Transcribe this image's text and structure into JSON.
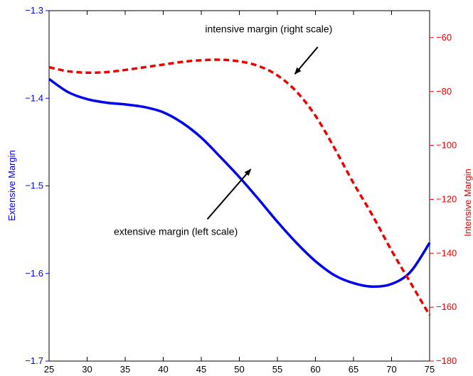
{
  "chart_data": {
    "type": "line",
    "x": [
      25,
      27.5,
      30,
      32.5,
      35,
      37.5,
      40,
      42.5,
      45,
      47.5,
      50,
      52.5,
      55,
      57.5,
      60,
      62.5,
      65,
      67.5,
      70,
      72.5,
      75
    ],
    "xticks": [
      25,
      30,
      35,
      40,
      45,
      50,
      55,
      60,
      65,
      70,
      75
    ],
    "xlim": [
      25,
      75
    ],
    "y_left": {
      "label": "Extensive Margin",
      "lim": [
        -1.7,
        -1.3
      ],
      "ticks": [
        -1.7,
        -1.6,
        -1.5,
        -1.4,
        -1.3
      ],
      "tick_labels": [
        "−1.7",
        "−1.6",
        "−1.5",
        "−1.4",
        "−1.3"
      ],
      "color": "#0000ee"
    },
    "y_right": {
      "label": "Intensive Margin",
      "lim": [
        -180,
        -50
      ],
      "ticks": [
        -180,
        -160,
        -140,
        -120,
        -100,
        -80,
        -60
      ],
      "tick_labels": [
        "−180",
        "−160",
        "−140",
        "−120",
        "−100",
        "−80",
        "−60"
      ],
      "color": "#ee0000"
    },
    "series": [
      {
        "axis": "left",
        "style": "solid",
        "color": "#0000ee",
        "values": [
          -1.378,
          -1.393,
          -1.401,
          -1.405,
          -1.407,
          -1.41,
          -1.416,
          -1.428,
          -1.445,
          -1.467,
          -1.49,
          -1.515,
          -1.541,
          -1.565,
          -1.586,
          -1.602,
          -1.611,
          -1.615,
          -1.612,
          -1.598,
          -1.565
        ]
      },
      {
        "axis": "right",
        "style": "dashed",
        "color": "#ee0000",
        "values": [
          -71,
          -72.5,
          -73,
          -72.8,
          -72,
          -71,
          -70,
          -69,
          -68.4,
          -68.2,
          -68.8,
          -70.5,
          -74,
          -80,
          -89,
          -101,
          -114,
          -126,
          -139,
          -151,
          -163
        ]
      }
    ],
    "annotations": [
      {
        "text": "intensive margin (right scale)",
        "text_at": [
          45.5,
          -58
        ],
        "arrow_from": [
          60.3,
          -63.5
        ],
        "arrow_to": [
          57.3,
          -73.5
        ]
      },
      {
        "text": "extensive margin (left scale)",
        "text_at": [
          33.5,
          -1.556
        ],
        "arrow_from": [
          45.8,
          -1.538
        ],
        "arrow_to": [
          51.5,
          -1.481
        ]
      }
    ]
  }
}
